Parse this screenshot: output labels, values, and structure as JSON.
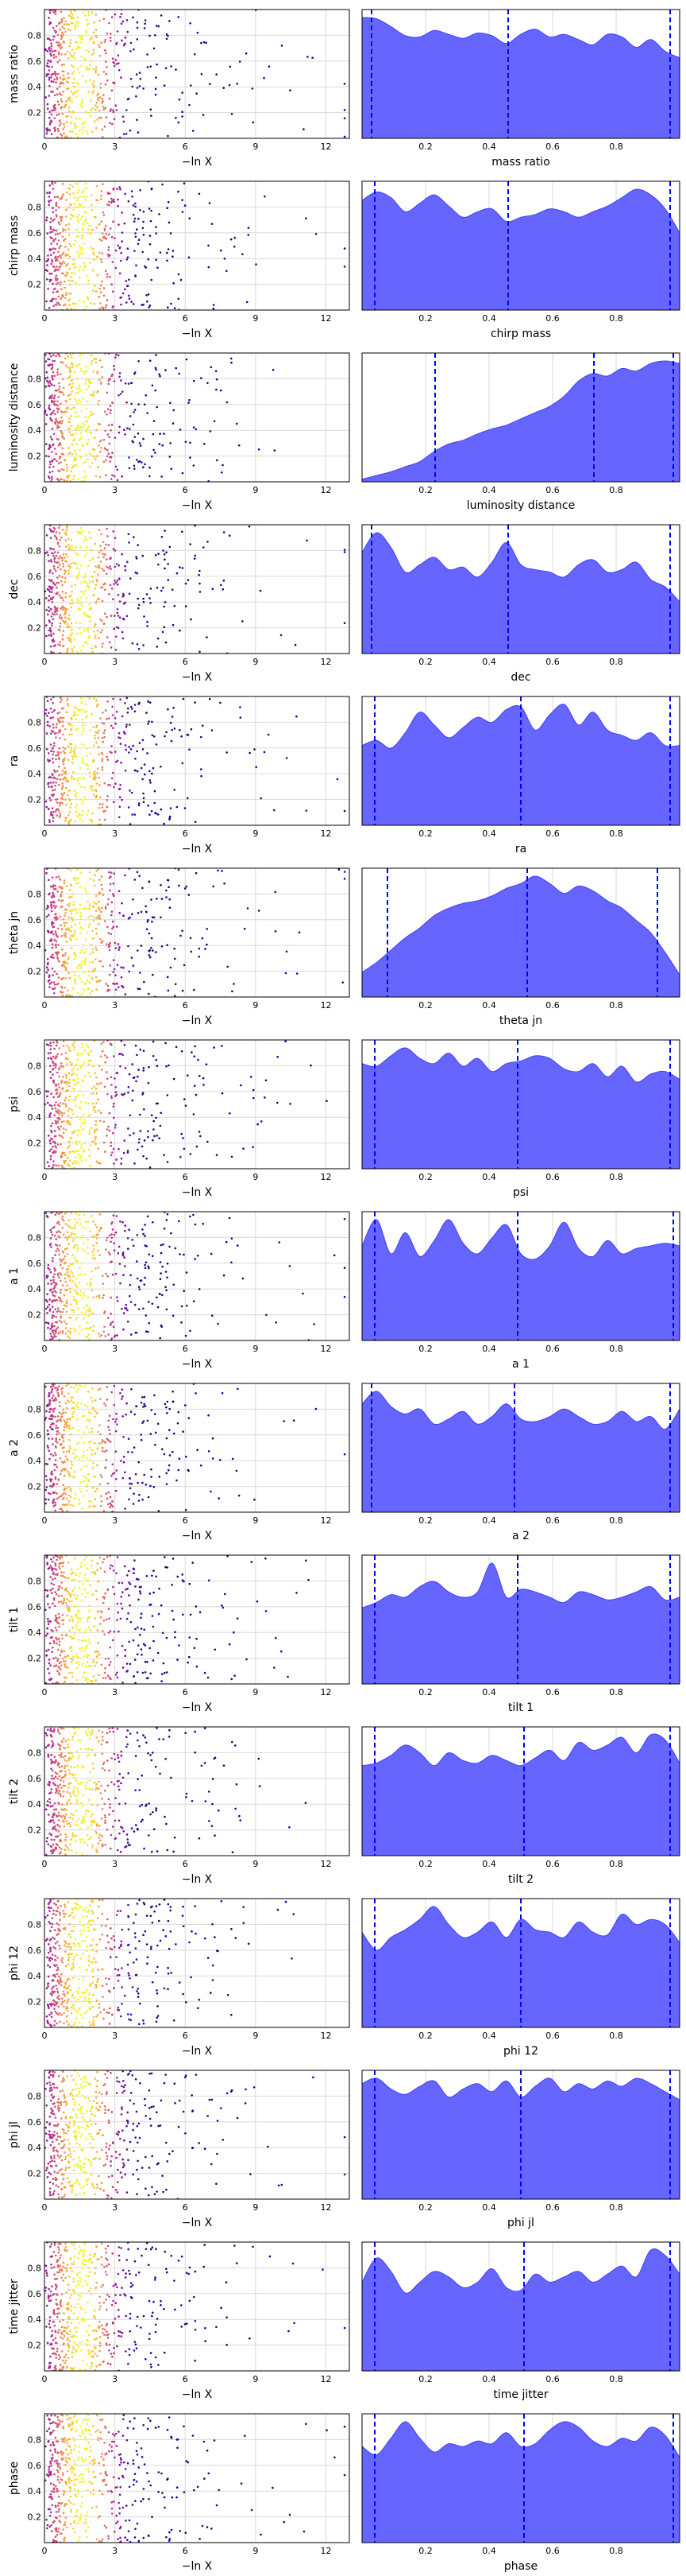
{
  "colors": {
    "kde_fill": "#6666ff",
    "kde_stroke": "#3f3fff",
    "quantile_line": "#0000ff",
    "trace_colormap": [
      "#0d0887",
      "#5c01a6",
      "#9c179e",
      "#cc4778",
      "#ed7953",
      "#fdb42f",
      "#f0f921"
    ]
  },
  "chart_data": {
    "type": "scatter",
    "layout": "trace-plot grid (15 rows x 2 columns)",
    "left_column": {
      "type": "scatter",
      "xlabel": "−ln X",
      "xlim": [
        0,
        13
      ],
      "x_ticks": [
        0,
        3,
        6,
        9,
        12
      ],
      "ylim": [
        0,
        1
      ],
      "y_ticks": [
        0.2,
        0.4,
        0.6,
        0.8
      ],
      "grid": true,
      "color_by": "sample weight (plasma colormap)"
    },
    "right_column": {
      "type": "area",
      "xlim": [
        0,
        1
      ],
      "x_ticks": [
        0.2,
        0.4,
        0.6,
        0.8
      ],
      "grid": true,
      "quantile_lines": "dashed, 2.5% / 50% / 97.5%"
    },
    "parameters": [
      {
        "name": "mass ratio",
        "quantiles": [
          0.03,
          0.46,
          0.97
        ],
        "density": [
          0.93,
          0.92,
          0.86,
          0.79,
          0.78,
          0.83,
          0.8,
          0.77,
          0.81,
          0.79,
          0.73,
          0.8,
          0.84,
          0.78,
          0.8,
          0.76,
          0.72,
          0.8,
          0.78,
          0.7,
          0.76,
          0.67,
          0.62
        ]
      },
      {
        "name": "chirp mass",
        "quantiles": [
          0.04,
          0.46,
          0.97
        ],
        "density": [
          0.78,
          0.84,
          0.8,
          0.7,
          0.76,
          0.82,
          0.74,
          0.66,
          0.7,
          0.72,
          0.63,
          0.66,
          0.68,
          0.72,
          0.7,
          0.66,
          0.7,
          0.74,
          0.8,
          0.86,
          0.82,
          0.72,
          0.55
        ]
      },
      {
        "name": "luminosity distance",
        "quantiles": [
          0.23,
          0.73,
          0.98
        ],
        "density": [
          0.02,
          0.05,
          0.08,
          0.12,
          0.16,
          0.24,
          0.3,
          0.33,
          0.38,
          0.42,
          0.45,
          0.5,
          0.55,
          0.6,
          0.68,
          0.8,
          0.86,
          0.84,
          0.9,
          0.88,
          0.94,
          0.96,
          0.94
        ]
      },
      {
        "name": "dec",
        "quantiles": [
          0.03,
          0.46,
          0.97
        ],
        "density": [
          0.82,
          0.98,
          0.86,
          0.66,
          0.72,
          0.78,
          0.68,
          0.7,
          0.62,
          0.74,
          0.9,
          0.72,
          0.68,
          0.66,
          0.62,
          0.72,
          0.76,
          0.66,
          0.68,
          0.74,
          0.6,
          0.54,
          0.42
        ]
      },
      {
        "name": "ra",
        "quantiles": [
          0.04,
          0.5,
          0.97
        ],
        "density": [
          0.62,
          0.66,
          0.6,
          0.72,
          0.88,
          0.78,
          0.68,
          0.76,
          0.84,
          0.8,
          0.9,
          0.92,
          0.74,
          0.86,
          0.94,
          0.78,
          0.88,
          0.74,
          0.7,
          0.66,
          0.72,
          0.62,
          0.62
        ]
      },
      {
        "name": "theta jn",
        "quantiles": [
          0.08,
          0.52,
          0.93
        ],
        "density": [
          0.2,
          0.28,
          0.38,
          0.48,
          0.56,
          0.66,
          0.72,
          0.76,
          0.78,
          0.82,
          0.88,
          0.92,
          0.98,
          0.92,
          0.84,
          0.9,
          0.86,
          0.78,
          0.72,
          0.62,
          0.52,
          0.36,
          0.18
        ]
      },
      {
        "name": "psi",
        "quantiles": [
          0.04,
          0.49,
          0.97
        ],
        "density": [
          0.8,
          0.78,
          0.86,
          0.92,
          0.84,
          0.8,
          0.88,
          0.78,
          0.84,
          0.74,
          0.8,
          0.82,
          0.86,
          0.84,
          0.76,
          0.74,
          0.8,
          0.7,
          0.78,
          0.66,
          0.72,
          0.74,
          0.68
        ]
      },
      {
        "name": "a 1",
        "quantiles": [
          0.04,
          0.49,
          0.98
        ],
        "density": [
          0.72,
          0.92,
          0.66,
          0.82,
          0.64,
          0.76,
          0.92,
          0.74,
          0.66,
          0.78,
          0.88,
          0.66,
          0.62,
          0.72,
          0.9,
          0.7,
          0.64,
          0.76,
          0.66,
          0.7,
          0.72,
          0.74,
          0.72
        ]
      },
      {
        "name": "a 2",
        "quantiles": [
          0.03,
          0.48,
          0.97
        ],
        "density": [
          0.86,
          0.96,
          0.84,
          0.78,
          0.82,
          0.7,
          0.74,
          0.8,
          0.7,
          0.76,
          0.86,
          0.74,
          0.72,
          0.76,
          0.82,
          0.76,
          0.7,
          0.72,
          0.8,
          0.72,
          0.76,
          0.66,
          0.82
        ]
      },
      {
        "name": "tilt 1",
        "quantiles": [
          0.04,
          0.49,
          0.97
        ],
        "density": [
          0.58,
          0.62,
          0.68,
          0.66,
          0.74,
          0.78,
          0.7,
          0.66,
          0.7,
          0.92,
          0.66,
          0.72,
          0.7,
          0.66,
          0.62,
          0.7,
          0.68,
          0.64,
          0.66,
          0.7,
          0.74,
          0.64,
          0.66
        ]
      },
      {
        "name": "tilt 2",
        "quantiles": [
          0.04,
          0.51,
          0.97
        ],
        "density": [
          0.7,
          0.72,
          0.78,
          0.86,
          0.8,
          0.7,
          0.8,
          0.74,
          0.72,
          0.78,
          0.74,
          0.7,
          0.76,
          0.82,
          0.74,
          0.88,
          0.82,
          0.86,
          0.92,
          0.8,
          0.94,
          0.9,
          0.72
        ]
      },
      {
        "name": "phi 12",
        "quantiles": [
          0.04,
          0.5,
          0.97
        ],
        "density": [
          0.74,
          0.6,
          0.7,
          0.76,
          0.84,
          0.94,
          0.8,
          0.7,
          0.74,
          0.82,
          0.7,
          0.84,
          0.76,
          0.74,
          0.7,
          0.82,
          0.74,
          0.72,
          0.88,
          0.8,
          0.84,
          0.8,
          0.66
        ]
      },
      {
        "name": "phi jl",
        "quantiles": [
          0.04,
          0.5,
          0.97
        ],
        "density": [
          0.86,
          0.9,
          0.82,
          0.78,
          0.84,
          0.88,
          0.76,
          0.82,
          0.86,
          0.8,
          0.88,
          0.76,
          0.84,
          0.9,
          0.8,
          0.86,
          0.82,
          0.88,
          0.84,
          0.9,
          0.86,
          0.8,
          0.74
        ]
      },
      {
        "name": "time jitter",
        "quantiles": [
          0.04,
          0.51,
          0.97
        ],
        "density": [
          0.66,
          0.84,
          0.74,
          0.58,
          0.66,
          0.74,
          0.7,
          0.62,
          0.66,
          0.76,
          0.62,
          0.6,
          0.72,
          0.66,
          0.7,
          0.74,
          0.66,
          0.72,
          0.78,
          0.7,
          0.9,
          0.86,
          0.72
        ]
      },
      {
        "name": "phase",
        "quantiles": [
          0.04,
          0.51,
          0.98
        ],
        "density": [
          0.7,
          0.64,
          0.76,
          0.88,
          0.76,
          0.66,
          0.72,
          0.7,
          0.74,
          0.72,
          0.8,
          0.7,
          0.72,
          0.82,
          0.88,
          0.84,
          0.74,
          0.7,
          0.76,
          0.74,
          0.84,
          0.78,
          0.62
        ]
      }
    ]
  }
}
